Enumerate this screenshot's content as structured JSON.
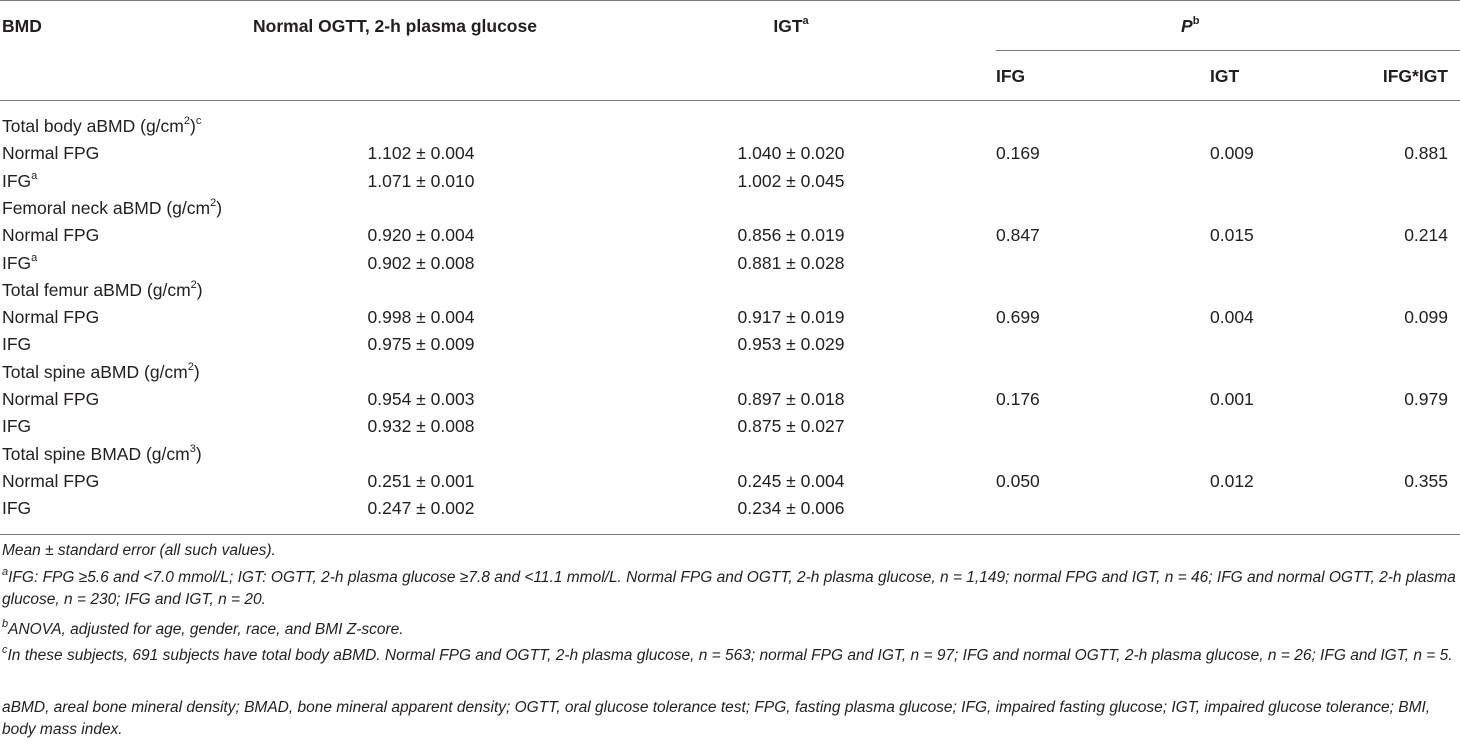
{
  "header": {
    "col_bmd": "BMD",
    "col_normal_ogtt": "Normal OGTT, 2-h plasma glucose",
    "col_igt": "IGT",
    "col_igt_sup": "a",
    "col_p": "P",
    "col_p_sup": "b",
    "sub_ifg": "IFG",
    "sub_igt": "IGT",
    "sub_interaction": "IFG*IGT"
  },
  "groups": [
    {
      "title": "Total body aBMD (g/cm",
      "title_sup": "2",
      "title_end": ")",
      "title_end_sup": "c",
      "rows": [
        {
          "label": "Normal FPG",
          "label_sup": "",
          "normal_ogtt": "1.102 ± 0.004",
          "igt": "1.040 ± 0.020",
          "p_ifg": "0.169",
          "p_igt": "0.009",
          "p_int": "0.881"
        },
        {
          "label": "IFG",
          "label_sup": "a",
          "normal_ogtt": "1.071 ± 0.010",
          "igt": "1.002 ± 0.045",
          "p_ifg": "",
          "p_igt": "",
          "p_int": ""
        }
      ]
    },
    {
      "title": "Femoral neck aBMD (g/cm",
      "title_sup": "2",
      "title_end": ")",
      "title_end_sup": "",
      "rows": [
        {
          "label": "Normal FPG",
          "label_sup": "",
          "normal_ogtt": "0.920 ± 0.004",
          "igt": "0.856 ± 0.019",
          "p_ifg": "0.847",
          "p_igt": "0.015",
          "p_int": "0.214"
        },
        {
          "label": "IFG",
          "label_sup": "a",
          "normal_ogtt": "0.902 ± 0.008",
          "igt": "0.881 ± 0.028",
          "p_ifg": "",
          "p_igt": "",
          "p_int": ""
        }
      ]
    },
    {
      "title": "Total femur aBMD (g/cm",
      "title_sup": "2",
      "title_end": ")",
      "title_end_sup": "",
      "rows": [
        {
          "label": "Normal FPG",
          "label_sup": "",
          "normal_ogtt": "0.998 ± 0.004",
          "igt": "0.917 ± 0.019",
          "p_ifg": "0.699",
          "p_igt": "0.004",
          "p_int": "0.099"
        },
        {
          "label": "IFG",
          "label_sup": "",
          "normal_ogtt": "0.975 ± 0.009",
          "igt": "0.953 ± 0.029",
          "p_ifg": "",
          "p_igt": "",
          "p_int": ""
        }
      ]
    },
    {
      "title": "Total spine aBMD (g/cm",
      "title_sup": "2",
      "title_end": ")",
      "title_end_sup": "",
      "rows": [
        {
          "label": "Normal FPG",
          "label_sup": "",
          "normal_ogtt": "0.954 ± 0.003",
          "igt": "0.897 ± 0.018",
          "p_ifg": "0.176",
          "p_igt": "0.001",
          "p_int": "0.979"
        },
        {
          "label": "IFG",
          "label_sup": "",
          "normal_ogtt": "0.932 ± 0.008",
          "igt": "0.875 ± 0.027",
          "p_ifg": "",
          "p_igt": "",
          "p_int": ""
        }
      ]
    },
    {
      "title": "Total spine BMAD (g/cm",
      "title_sup": "3",
      "title_end": ")",
      "title_end_sup": "",
      "rows": [
        {
          "label": "Normal FPG",
          "label_sup": "",
          "normal_ogtt": "0.251 ± 0.001",
          "igt": "0.245 ± 0.004",
          "p_ifg": "0.050",
          "p_igt": "0.012",
          "p_int": "0.355"
        },
        {
          "label": "IFG",
          "label_sup": "",
          "normal_ogtt": "0.247 ± 0.002",
          "igt": "0.234 ± 0.006",
          "p_ifg": "",
          "p_igt": "",
          "p_int": ""
        }
      ]
    }
  ],
  "footnotes": {
    "mean_note": "Mean ± standard error (all such values).",
    "a_sup": "a",
    "a_text": "IFG: FPG ≥5.6 and <7.0 mmol/L; IGT: OGTT, 2-h plasma glucose ≥7.8 and <11.1 mmol/L. Normal FPG and OGTT, 2-h plasma glucose, n = 1,149; normal FPG and IGT, n = 46; IFG and normal OGTT, 2-h plasma glucose, n = 230; IFG and IGT, n = 20.",
    "b_sup": "b",
    "b_text": "ANOVA, adjusted for age, gender, race, and BMI Z-score.",
    "c_sup": "c",
    "c_text": "In these subjects, 691 subjects have total body aBMD. Normal FPG and OGTT, 2-h plasma glucose, n = 563; normal FPG and IGT, n = 97; IFG and normal OGTT, 2-h plasma glucose, n = 26; IFG and IGT, n = 5.",
    "abbrev": "aBMD, areal bone mineral density; BMAD, bone mineral apparent density; OGTT, oral glucose tolerance test; FPG, fasting plasma glucose; IFG, impaired fasting glucose; IGT, impaired glucose tolerance; BMI, body mass index."
  }
}
